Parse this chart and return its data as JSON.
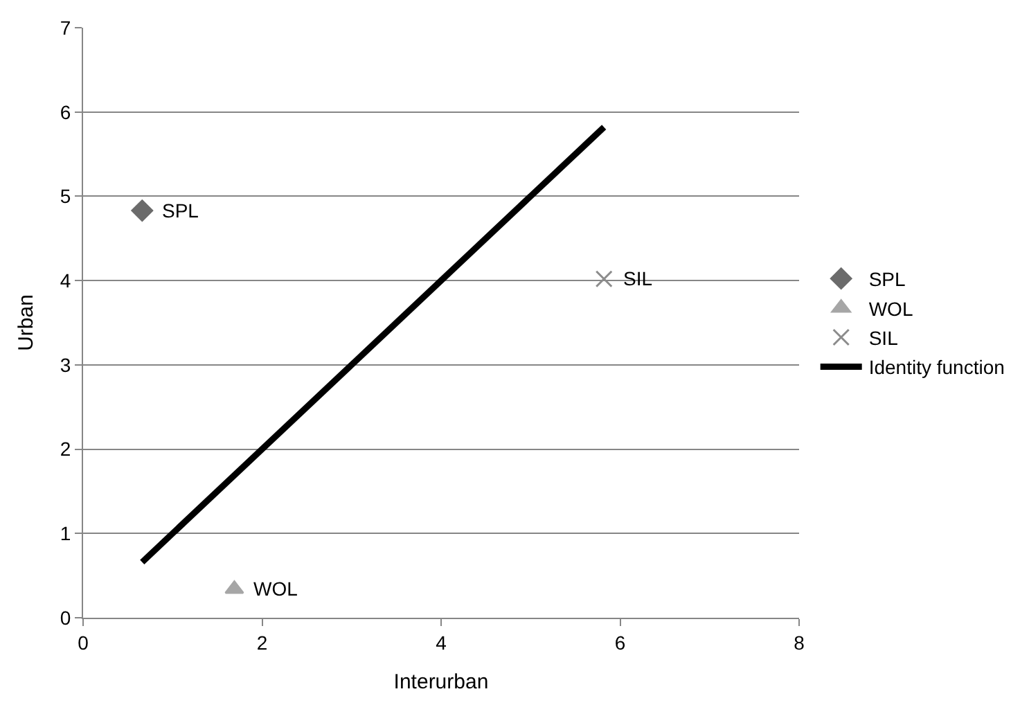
{
  "chart_data": {
    "type": "scatter",
    "xlabel": "Interurban",
    "ylabel": "Urban",
    "xlim": [
      0,
      8
    ],
    "xticks": [
      0,
      2,
      4,
      6,
      8
    ],
    "ylim": [
      0,
      7
    ],
    "yticks": [
      0,
      1,
      2,
      3,
      4,
      5,
      6,
      7
    ],
    "grid": "y",
    "legend": "right",
    "series": [
      {
        "name": "SPL",
        "color": "#6b6b6b",
        "marker": "diamond",
        "x": [
          0.66
        ],
        "values": [
          4.83
        ]
      },
      {
        "name": "WOL",
        "color": "#a6a6a6",
        "marker": "triangle",
        "x": [
          1.69
        ],
        "values": [
          0.34
        ]
      },
      {
        "name": "SIL",
        "color": "#8c8c8c",
        "marker": "cross",
        "x": [
          5.82
        ],
        "values": [
          4.02
        ]
      },
      {
        "name": "Identity function",
        "type": "line",
        "color": "#000000",
        "marker": "none",
        "x": [
          0.66,
          5.82
        ],
        "values": [
          0.66,
          5.82
        ]
      }
    ],
    "annotations": [
      {
        "text": "SPL",
        "x": 0.66,
        "y": 4.83
      },
      {
        "text": "WOL",
        "x": 1.69,
        "y": 0.34
      },
      {
        "text": "SIL",
        "x": 5.82,
        "y": 4.02
      }
    ]
  }
}
